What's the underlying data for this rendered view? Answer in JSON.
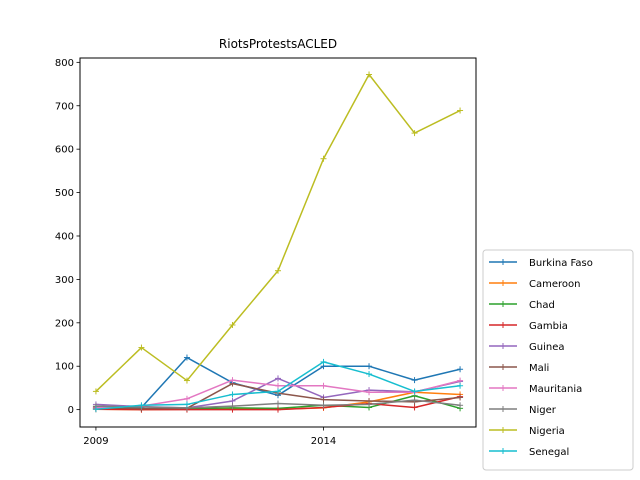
{
  "chart_data": {
    "type": "line",
    "title": "RiotsProtestsACLED",
    "xlabel": "",
    "ylabel": "",
    "x": [
      2009,
      2010,
      2011,
      2012,
      2013,
      2014,
      2015,
      2016,
      2017
    ],
    "x_ticks": [
      "2009",
      "2014"
    ],
    "x_tick_values": [
      2009,
      2014
    ],
    "xlim": [
      2008.65,
      2017.35
    ],
    "ylim": [
      -40,
      810
    ],
    "y_ticks": [
      0,
      100,
      200,
      300,
      400,
      500,
      600,
      700,
      800
    ],
    "grid": false,
    "legend_position": "outside-right-bottom",
    "series": [
      {
        "name": "Burkina Faso",
        "color": "#1f77b4",
        "values": [
          2,
          5,
          120,
          62,
          33,
          100,
          100,
          68,
          93
        ]
      },
      {
        "name": "Cameroon",
        "color": "#ff7f0e",
        "values": [
          1,
          0,
          1,
          2,
          1,
          4,
          18,
          40,
          35
        ]
      },
      {
        "name": "Chad",
        "color": "#2ca02c",
        "values": [
          4,
          2,
          2,
          4,
          3,
          10,
          5,
          32,
          3
        ]
      },
      {
        "name": "Gambia",
        "color": "#d62728",
        "values": [
          1,
          0,
          0,
          0,
          0,
          5,
          14,
          5,
          30
        ]
      },
      {
        "name": "Guinea",
        "color": "#9467bd",
        "values": [
          12,
          7,
          4,
          20,
          72,
          28,
          45,
          41,
          65
        ]
      },
      {
        "name": "Mali",
        "color": "#8c564b",
        "values": [
          6,
          2,
          3,
          60,
          38,
          23,
          20,
          18,
          28
        ]
      },
      {
        "name": "Mauritania",
        "color": "#e377c2",
        "values": [
          4,
          8,
          25,
          68,
          55,
          55,
          40,
          40,
          67
        ]
      },
      {
        "name": "Niger",
        "color": "#7f7f7f",
        "values": [
          8,
          6,
          4,
          8,
          14,
          10,
          12,
          22,
          10
        ]
      },
      {
        "name": "Nigeria",
        "color": "#bcbd22",
        "values": [
          42,
          143,
          67,
          195,
          320,
          578,
          772,
          637,
          689
        ]
      },
      {
        "name": "Senegal",
        "color": "#17becf",
        "values": [
          1,
          10,
          12,
          35,
          42,
          110,
          82,
          42,
          55
        ]
      }
    ]
  }
}
